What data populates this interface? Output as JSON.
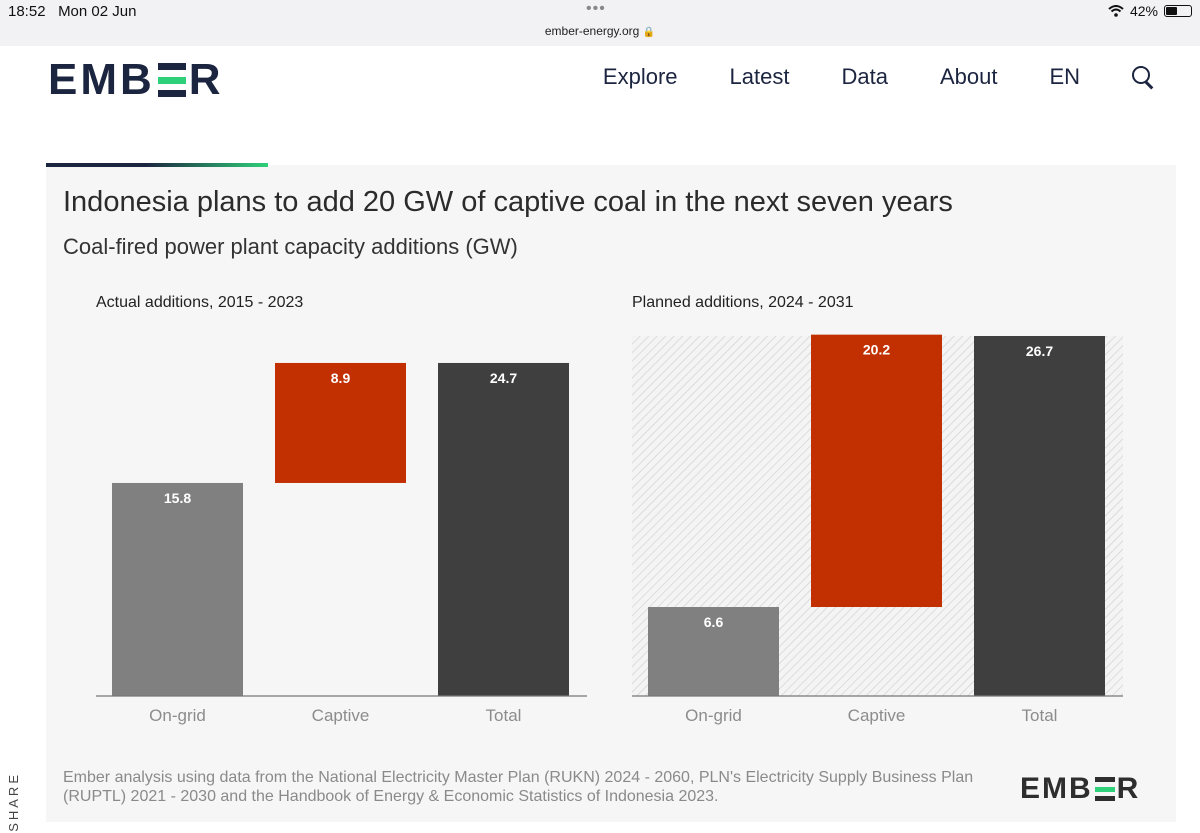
{
  "status_bar": {
    "time": "18:52",
    "date": "Mon 02 Jun",
    "url": "ember-energy.org",
    "battery": "42%"
  },
  "header": {
    "brand": {
      "left": "EMB",
      "right": "R"
    },
    "nav": [
      "Explore",
      "Latest",
      "Data",
      "About",
      "EN"
    ]
  },
  "chart_data": {
    "type": "bar",
    "title": "Indonesia plans to add 20 GW of captive coal in the next seven years",
    "subtitle": "Coal-fired power plant capacity additions (GW)",
    "panels": [
      {
        "title": "Actual additions, 2015 - 2023",
        "categories": [
          "On-grid",
          "Captive",
          "Total"
        ],
        "values": [
          15.8,
          8.9,
          24.7
        ],
        "bases": [
          0,
          15.8,
          0
        ],
        "colors": [
          "#808080",
          "#c22f00",
          "#3f3f3f"
        ],
        "hatched": false
      },
      {
        "title": "Planned additions, 2024 - 2031",
        "categories": [
          "On-grid",
          "Captive",
          "Total"
        ],
        "values": [
          6.6,
          20.2,
          26.7
        ],
        "bases": [
          0,
          6.6,
          0
        ],
        "colors": [
          "#808080",
          "#c22f00",
          "#3f3f3f"
        ],
        "hatched": true
      }
    ],
    "ylim": [
      0,
      26.7
    ],
    "grid": false,
    "xlabel": "",
    "ylabel": ""
  },
  "source": "Ember analysis using data from the National Electricity Master Plan (RUKN) 2024 - 2060, PLN's Electricity Supply Business Plan (RUPTL) 2021 - 2030 and the Handbook of Energy & Economic Statistics of Indonesia 2023.",
  "footer_brand": {
    "left": "EMB",
    "right": "R"
  },
  "share_label": "SHARE"
}
